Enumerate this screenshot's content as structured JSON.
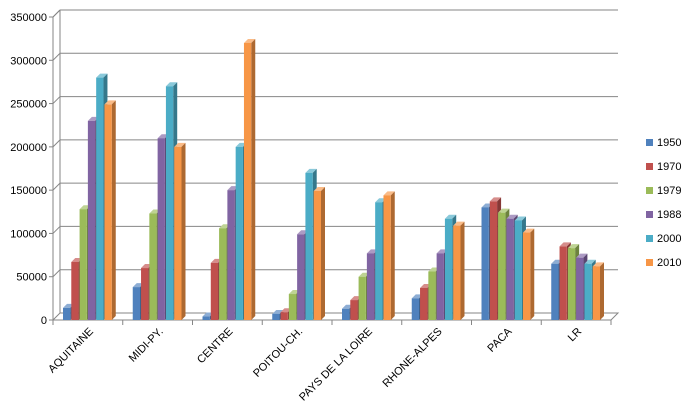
{
  "chart_data": {
    "type": "bar",
    "categories": [
      "AQUITAINE",
      "MIDI-PY.",
      "CENTRE",
      "POITOU-CH.",
      "PAYS DE LA LOIRE",
      "RHONE-ALPES",
      "PACA",
      "LR"
    ],
    "series": [
      {
        "name": "1950",
        "color": "#4F81BD",
        "values": [
          14000,
          38000,
          4000,
          7000,
          13000,
          25000,
          130000,
          65000
        ]
      },
      {
        "name": "1970",
        "color": "#C0504D",
        "values": [
          67000,
          60000,
          66000,
          9000,
          23000,
          37000,
          137000,
          85000
        ]
      },
      {
        "name": "1979",
        "color": "#9BBB59",
        "values": [
          128000,
          123000,
          106000,
          30000,
          50000,
          56000,
          124000,
          83000
        ]
      },
      {
        "name": "1988",
        "color": "#8064A2",
        "values": [
          230000,
          210000,
          150000,
          99000,
          77000,
          77000,
          117000,
          72000
        ]
      },
      {
        "name": "2000",
        "color": "#4BACC6",
        "values": [
          280000,
          270000,
          200000,
          170000,
          136000,
          117000,
          115000,
          65000
        ]
      },
      {
        "name": "2010",
        "color": "#F79646",
        "values": [
          249000,
          200000,
          320000,
          149000,
          144000,
          109000,
          101000,
          62000
        ]
      }
    ],
    "yticks": [
      "0",
      "50000",
      "100000",
      "150000",
      "200000",
      "250000",
      "300000",
      "350000"
    ],
    "ylim": [
      0,
      350000
    ],
    "grid": true,
    "legend": "right"
  }
}
